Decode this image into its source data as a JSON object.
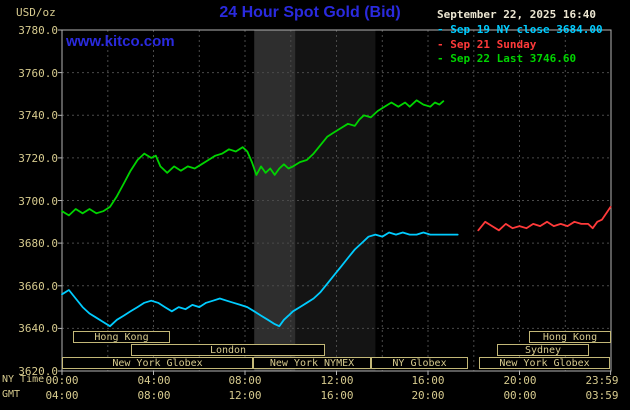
{
  "colors": {
    "background": "#000000",
    "title_blue": "#2a2ade",
    "axis_text": "#d6ca8e",
    "grid": "#4a4a4a",
    "series_friday": "#00ccff",
    "series_sunday": "#ff3a3a",
    "series_today": "#00d400"
  },
  "header": {
    "units_label": "USD/oz",
    "title": "24 Hour Spot Gold (Bid)",
    "watermark": "www.kitco.com",
    "datetime": "September 22, 2025 16:40"
  },
  "legend": [
    {
      "label": "- Sep 19 NY close 3684.00",
      "color": "#00ccff"
    },
    {
      "label": "- Sep 21 Sunday",
      "color": "#ff3a3a"
    },
    {
      "label": "- Sep 22 Last 3746.60",
      "color": "#00d400"
    }
  ],
  "axis": {
    "ny_label": "NY Time",
    "gmt_label": "GMT",
    "x_ticks": [
      {
        "hour": 0,
        "ny": "00:00",
        "gmt": "04:00"
      },
      {
        "hour": 4,
        "ny": "04:00",
        "gmt": "08:00"
      },
      {
        "hour": 8,
        "ny": "08:00",
        "gmt": "12:00"
      },
      {
        "hour": 12,
        "ny": "12:00",
        "gmt": "16:00"
      },
      {
        "hour": 16,
        "ny": "16:00",
        "gmt": "20:00"
      },
      {
        "hour": 20,
        "ny": "20:00",
        "gmt": "00:00"
      },
      {
        "hour": 23.983,
        "ny": "23:59",
        "gmt": "03:59"
      }
    ],
    "y_ticks": [
      {
        "value": 3780,
        "label": "3780.0"
      },
      {
        "value": 3760,
        "label": "3760.0"
      },
      {
        "value": 3740,
        "label": "3740.0"
      },
      {
        "value": 3720,
        "label": "3720.0"
      },
      {
        "value": 3700,
        "label": "3700.0"
      },
      {
        "value": 3680,
        "label": "3680.0"
      },
      {
        "value": 3660,
        "label": "3660.0"
      },
      {
        "value": 3640,
        "label": "3640.0"
      },
      {
        "value": 3620,
        "label": "3620.0"
      }
    ]
  },
  "chart_data": {
    "type": "line",
    "title": "24 Hour Spot Gold (Bid)",
    "xlabel": "NY Time (hours)",
    "ylabel": "USD/oz",
    "xlim": [
      0,
      24
    ],
    "ylim": [
      3620,
      3780
    ],
    "grid": {
      "x_step_hours": 2,
      "y_step": 20
    },
    "bands": [
      {
        "start": 8.4,
        "end": 10.2,
        "color": "#2e2e2e"
      },
      {
        "start": 10.2,
        "end": 13.7,
        "color": "#141414"
      }
    ],
    "series": [
      {
        "name": "Sep 19 NY close",
        "close": 3684.0,
        "color": "#00ccff",
        "points": [
          [
            0,
            3656
          ],
          [
            0.3,
            3658
          ],
          [
            0.6,
            3654
          ],
          [
            0.9,
            3650
          ],
          [
            1.2,
            3647
          ],
          [
            1.5,
            3645
          ],
          [
            1.8,
            3643
          ],
          [
            2.1,
            3641
          ],
          [
            2.4,
            3644
          ],
          [
            2.7,
            3646
          ],
          [
            3.0,
            3648
          ],
          [
            3.3,
            3650
          ],
          [
            3.6,
            3652
          ],
          [
            3.9,
            3653
          ],
          [
            4.2,
            3652
          ],
          [
            4.5,
            3650
          ],
          [
            4.8,
            3648
          ],
          [
            5.1,
            3650
          ],
          [
            5.4,
            3649
          ],
          [
            5.7,
            3651
          ],
          [
            6.0,
            3650
          ],
          [
            6.3,
            3652
          ],
          [
            6.6,
            3653
          ],
          [
            6.9,
            3654
          ],
          [
            7.2,
            3653
          ],
          [
            7.5,
            3652
          ],
          [
            7.8,
            3651
          ],
          [
            8.1,
            3650
          ],
          [
            8.4,
            3648
          ],
          [
            8.7,
            3646
          ],
          [
            9.0,
            3644
          ],
          [
            9.3,
            3642
          ],
          [
            9.5,
            3641
          ],
          [
            9.7,
            3644
          ],
          [
            9.9,
            3646
          ],
          [
            10.1,
            3648
          ],
          [
            10.4,
            3650
          ],
          [
            10.7,
            3652
          ],
          [
            11.0,
            3654
          ],
          [
            11.3,
            3657
          ],
          [
            11.6,
            3661
          ],
          [
            11.9,
            3665
          ],
          [
            12.2,
            3669
          ],
          [
            12.5,
            3673
          ],
          [
            12.8,
            3677
          ],
          [
            13.1,
            3680
          ],
          [
            13.4,
            3683
          ],
          [
            13.7,
            3684
          ],
          [
            14.0,
            3683
          ],
          [
            14.3,
            3685
          ],
          [
            14.6,
            3684
          ],
          [
            14.9,
            3685
          ],
          [
            15.2,
            3684
          ],
          [
            15.5,
            3684
          ],
          [
            15.8,
            3685
          ],
          [
            16.1,
            3684
          ],
          [
            16.4,
            3684
          ],
          [
            16.7,
            3684
          ],
          [
            17.0,
            3684
          ],
          [
            17.3,
            3684
          ]
        ]
      },
      {
        "name": "Sep 21 Sunday",
        "color": "#ff3a3a",
        "points": [
          [
            18.2,
            3686
          ],
          [
            18.5,
            3690
          ],
          [
            18.8,
            3688
          ],
          [
            19.1,
            3686
          ],
          [
            19.4,
            3689
          ],
          [
            19.7,
            3687
          ],
          [
            20.0,
            3688
          ],
          [
            20.3,
            3687
          ],
          [
            20.6,
            3689
          ],
          [
            20.9,
            3688
          ],
          [
            21.2,
            3690
          ],
          [
            21.5,
            3688
          ],
          [
            21.8,
            3689
          ],
          [
            22.1,
            3688
          ],
          [
            22.4,
            3690
          ],
          [
            22.7,
            3689
          ],
          [
            23.0,
            3689
          ],
          [
            23.2,
            3687
          ],
          [
            23.4,
            3690
          ],
          [
            23.6,
            3691
          ],
          [
            23.983,
            3697
          ]
        ]
      },
      {
        "name": "Sep 22 Last",
        "last": 3746.6,
        "color": "#00d400",
        "points": [
          [
            0,
            3695
          ],
          [
            0.3,
            3693
          ],
          [
            0.6,
            3696
          ],
          [
            0.9,
            3694
          ],
          [
            1.2,
            3696
          ],
          [
            1.5,
            3694
          ],
          [
            1.8,
            3695
          ],
          [
            2.1,
            3697
          ],
          [
            2.4,
            3702
          ],
          [
            2.7,
            3708
          ],
          [
            3.0,
            3714
          ],
          [
            3.3,
            3719
          ],
          [
            3.6,
            3722
          ],
          [
            3.9,
            3720
          ],
          [
            4.1,
            3721
          ],
          [
            4.3,
            3716
          ],
          [
            4.6,
            3713
          ],
          [
            4.9,
            3716
          ],
          [
            5.2,
            3714
          ],
          [
            5.5,
            3716
          ],
          [
            5.8,
            3715
          ],
          [
            6.1,
            3717
          ],
          [
            6.4,
            3719
          ],
          [
            6.7,
            3721
          ],
          [
            7.0,
            3722
          ],
          [
            7.3,
            3724
          ],
          [
            7.6,
            3723
          ],
          [
            7.9,
            3725
          ],
          [
            8.1,
            3723
          ],
          [
            8.3,
            3718
          ],
          [
            8.5,
            3712
          ],
          [
            8.7,
            3716
          ],
          [
            8.9,
            3713
          ],
          [
            9.1,
            3715
          ],
          [
            9.3,
            3712
          ],
          [
            9.5,
            3715
          ],
          [
            9.7,
            3717
          ],
          [
            9.9,
            3715
          ],
          [
            10.1,
            3716
          ],
          [
            10.4,
            3718
          ],
          [
            10.7,
            3719
          ],
          [
            11.0,
            3722
          ],
          [
            11.3,
            3726
          ],
          [
            11.6,
            3730
          ],
          [
            11.9,
            3732
          ],
          [
            12.2,
            3734
          ],
          [
            12.5,
            3736
          ],
          [
            12.8,
            3735
          ],
          [
            13.0,
            3738
          ],
          [
            13.2,
            3740
          ],
          [
            13.5,
            3739
          ],
          [
            13.8,
            3742
          ],
          [
            14.1,
            3744
          ],
          [
            14.4,
            3746
          ],
          [
            14.7,
            3744
          ],
          [
            15.0,
            3746
          ],
          [
            15.2,
            3744
          ],
          [
            15.5,
            3747
          ],
          [
            15.8,
            3745
          ],
          [
            16.1,
            3744
          ],
          [
            16.3,
            3746
          ],
          [
            16.5,
            3745
          ],
          [
            16.67,
            3746.6
          ]
        ]
      }
    ]
  },
  "sessions": {
    "rows": [
      {
        "row": 0,
        "label": "Hong Kong",
        "start": 0.5,
        "end": 4.75
      },
      {
        "row": 0,
        "label": "Hong Kong",
        "start": 20.4,
        "end": 23.983
      },
      {
        "row": 1,
        "label": "London",
        "start": 3.0,
        "end": 11.5
      },
      {
        "row": 1,
        "label": "Sydney",
        "start": 19.0,
        "end": 23.0
      },
      {
        "row": 2,
        "label": "New York Globex",
        "start": 0,
        "end": 8.33
      },
      {
        "row": 2,
        "label": "New York NYMEX",
        "start": 8.33,
        "end": 13.5
      },
      {
        "row": 2,
        "label": "NY Globex",
        "start": 13.5,
        "end": 17.75
      },
      {
        "row": 2,
        "label": "New York Globex",
        "start": 18.25,
        "end": 23.983
      }
    ]
  }
}
